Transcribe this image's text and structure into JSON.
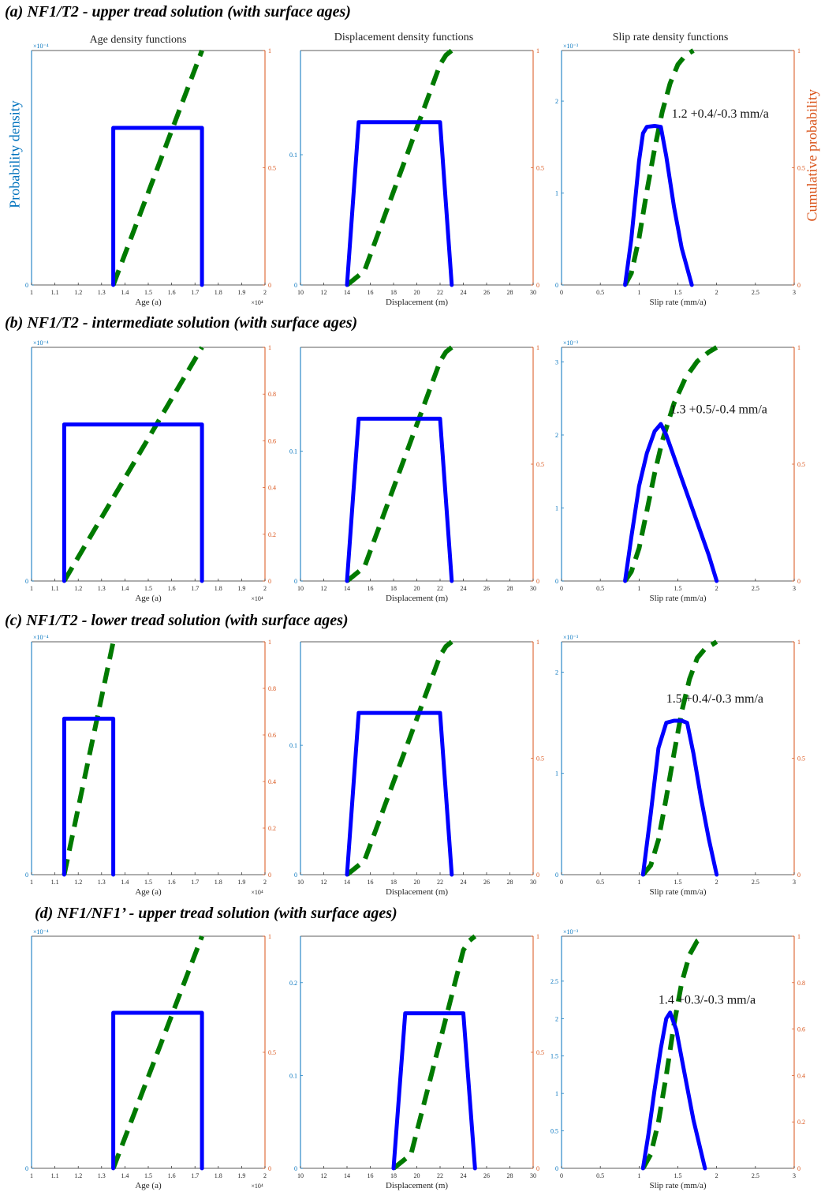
{
  "row_titles": [
    "(a) NF1/T2 - upper tread solution (with surface ages)",
    "(b) NF1/T2 - intermediate solution (with surface ages)",
    "(c) NF1/T2 - lower tread solution (with surface ages)",
    "(d) NF1/NF1’ - upper tread solution (with surface ages)"
  ],
  "column_titles": [
    "Age density functions",
    "Displacement density functions",
    "Slip rate density functions"
  ],
  "left_axis_label": "Probability density",
  "right_axis_label": "Cumulative probability",
  "colors": {
    "pdf": "#0000ff",
    "cdf": "#007a00",
    "left_axis": "#0072bd",
    "right_axis": "#d95319"
  },
  "chart_data": [
    {
      "id": "a-age",
      "type": "line",
      "xlabel": "Age (a)",
      "xlim": [
        1,
        2
      ],
      "xticks": [
        1,
        1.1,
        1.2,
        1.3,
        1.4,
        1.5,
        1.6,
        1.7,
        1.8,
        1.9,
        2
      ],
      "x_exponent": "×10⁴",
      "ylim_left": [
        0,
        1.0
      ],
      "yticks_left": [
        0
      ],
      "y_exponent": "×10⁻⁴",
      "ylim_right": [
        0,
        1
      ],
      "yticks_right": [
        0,
        0.5,
        1
      ],
      "pdf": {
        "x": [
          1.35,
          1.35,
          1.73,
          1.73
        ],
        "y": [
          0,
          0.67,
          0.67,
          0
        ]
      },
      "cdf": {
        "x": [
          1.35,
          1.73
        ],
        "y": [
          0,
          1
        ]
      }
    },
    {
      "id": "a-disp",
      "type": "line",
      "xlabel": "Displacement (m)",
      "xlim": [
        10,
        30
      ],
      "xticks": [
        10,
        12,
        14,
        16,
        18,
        20,
        22,
        24,
        26,
        28,
        30
      ],
      "ylim_left": [
        0,
        0.18
      ],
      "yticks_left": [
        0,
        0.1
      ],
      "ylim_right": [
        0,
        1
      ],
      "yticks_right": [
        0,
        0.5,
        1
      ],
      "pdf": {
        "x": [
          14,
          15,
          22,
          23
        ],
        "y": [
          0,
          0.125,
          0.125,
          0
        ]
      },
      "cdf": {
        "x": [
          14,
          14.5,
          15.5,
          22,
          22.5,
          23
        ],
        "y": [
          0,
          0.02,
          0.06,
          0.94,
          0.98,
          1
        ]
      }
    },
    {
      "id": "a-slip",
      "type": "line",
      "xlabel": "Slip rate (mm/a)",
      "xlim": [
        0,
        3
      ],
      "xticks": [
        0,
        0.5,
        1,
        1.5,
        2,
        2.5,
        3
      ],
      "ylim_left": [
        0,
        2.55
      ],
      "yticks_left": [
        0,
        1,
        2
      ],
      "y_exponent": "×10⁻³",
      "ylim_right": [
        0,
        1
      ],
      "yticks_right": [
        0,
        0.5,
        1
      ],
      "annotation": "1.2 +0.4/-0.3 mm/a",
      "annotation_pos": [
        1.42,
        1.82
      ],
      "pdf": {
        "x": [
          0.82,
          0.9,
          1.0,
          1.05,
          1.1,
          1.2,
          1.28,
          1.35,
          1.45,
          1.55,
          1.68
        ],
        "y": [
          0,
          0.5,
          1.35,
          1.65,
          1.72,
          1.73,
          1.72,
          1.4,
          0.85,
          0.4,
          0
        ]
      },
      "cdf": {
        "x": [
          0.82,
          0.9,
          1.0,
          1.1,
          1.2,
          1.3,
          1.4,
          1.5,
          1.6,
          1.7
        ],
        "y": [
          0,
          0.05,
          0.2,
          0.4,
          0.58,
          0.74,
          0.86,
          0.94,
          0.98,
          1
        ]
      }
    },
    {
      "id": "b-age",
      "type": "line",
      "xlabel": "Age (a)",
      "xlim": [
        1,
        2
      ],
      "xticks": [
        1,
        1.1,
        1.2,
        1.3,
        1.4,
        1.5,
        1.6,
        1.7,
        1.8,
        1.9,
        2
      ],
      "x_exponent": "×10⁴",
      "ylim_left": [
        0,
        1.0
      ],
      "yticks_left": [
        0
      ],
      "y_exponent": "×10⁻⁴",
      "ylim_right": [
        0,
        1
      ],
      "yticks_right": [
        0,
        0.2,
        0.4,
        0.6,
        0.8,
        1
      ],
      "pdf": {
        "x": [
          1.14,
          1.14,
          1.73,
          1.73
        ],
        "y": [
          0,
          0.67,
          0.67,
          0
        ]
      },
      "cdf": {
        "x": [
          1.14,
          1.73
        ],
        "y": [
          0,
          1
        ]
      }
    },
    {
      "id": "b-disp",
      "type": "line",
      "xlabel": "Displacement (m)",
      "xlim": [
        10,
        30
      ],
      "xticks": [
        10,
        12,
        14,
        16,
        18,
        20,
        22,
        24,
        26,
        28,
        30
      ],
      "ylim_left": [
        0,
        0.18
      ],
      "yticks_left": [
        0,
        0.1
      ],
      "ylim_right": [
        0,
        1
      ],
      "yticks_right": [
        0,
        0.5,
        1
      ],
      "pdf": {
        "x": [
          14,
          15,
          22,
          23
        ],
        "y": [
          0,
          0.125,
          0.125,
          0
        ]
      },
      "cdf": {
        "x": [
          14,
          14.5,
          15.5,
          22,
          22.5,
          23
        ],
        "y": [
          0,
          0.02,
          0.06,
          0.94,
          0.98,
          1
        ]
      }
    },
    {
      "id": "b-slip",
      "type": "line",
      "xlabel": "Slip rate (mm/a)",
      "xlim": [
        0,
        3
      ],
      "xticks": [
        0,
        0.5,
        1,
        1.5,
        2,
        2.5,
        3
      ],
      "ylim_left": [
        0,
        3.2
      ],
      "yticks_left": [
        0,
        1,
        2,
        3
      ],
      "y_exponent": "×10⁻³",
      "ylim_right": [
        0,
        1
      ],
      "yticks_right": [
        0,
        0.5,
        1
      ],
      "annotation": "1.3 +0.5/-0.4 mm/a",
      "annotation_pos": [
        1.4,
        2.3
      ],
      "pdf": {
        "x": [
          0.82,
          0.9,
          1.0,
          1.1,
          1.2,
          1.28,
          1.35,
          1.5,
          1.7,
          1.9,
          2.0
        ],
        "y": [
          0,
          0.6,
          1.3,
          1.75,
          2.05,
          2.15,
          2.0,
          1.55,
          0.95,
          0.35,
          0
        ]
      },
      "cdf": {
        "x": [
          0.82,
          0.9,
          1.0,
          1.1,
          1.2,
          1.3,
          1.45,
          1.6,
          1.75,
          1.9,
          2.0
        ],
        "y": [
          0,
          0.04,
          0.14,
          0.3,
          0.46,
          0.6,
          0.76,
          0.87,
          0.94,
          0.98,
          1
        ]
      }
    },
    {
      "id": "c-age",
      "type": "line",
      "xlabel": "Age (a)",
      "xlim": [
        1,
        2
      ],
      "xticks": [
        1,
        1.1,
        1.2,
        1.3,
        1.4,
        1.5,
        1.6,
        1.7,
        1.8,
        1.9,
        2
      ],
      "x_exponent": "×10⁴",
      "ylim_left": [
        0,
        1.0
      ],
      "yticks_left": [
        0
      ],
      "y_exponent": "×10⁻⁴",
      "ylim_right": [
        0,
        1
      ],
      "yticks_right": [
        0,
        0.2,
        0.4,
        0.6,
        0.8,
        1
      ],
      "pdf": {
        "x": [
          1.14,
          1.14,
          1.35,
          1.35
        ],
        "y": [
          0,
          0.67,
          0.67,
          0
        ]
      },
      "cdf": {
        "x": [
          1.14,
          1.35
        ],
        "y": [
          0,
          1
        ]
      }
    },
    {
      "id": "c-disp",
      "type": "line",
      "xlabel": "Displacement (m)",
      "xlim": [
        10,
        30
      ],
      "xticks": [
        10,
        12,
        14,
        16,
        18,
        20,
        22,
        24,
        26,
        28,
        30
      ],
      "ylim_left": [
        0,
        0.18
      ],
      "yticks_left": [
        0,
        0.1
      ],
      "ylim_right": [
        0,
        1
      ],
      "yticks_right": [
        0,
        0.5,
        1
      ],
      "pdf": {
        "x": [
          14,
          15,
          22,
          23
        ],
        "y": [
          0,
          0.125,
          0.125,
          0
        ]
      },
      "cdf": {
        "x": [
          14,
          14.5,
          15.5,
          22,
          22.5,
          23
        ],
        "y": [
          0,
          0.02,
          0.06,
          0.94,
          0.98,
          1
        ]
      }
    },
    {
      "id": "c-slip",
      "type": "line",
      "xlabel": "Slip rate (mm/a)",
      "xlim": [
        0,
        3
      ],
      "xticks": [
        0,
        0.5,
        1,
        1.5,
        2,
        2.5,
        3
      ],
      "ylim_left": [
        0,
        2.3
      ],
      "yticks_left": [
        0,
        1,
        2
      ],
      "y_exponent": "×10⁻³",
      "ylim_right": [
        0,
        1
      ],
      "yticks_right": [
        0,
        0.5,
        1
      ],
      "annotation": "1.5 +0.4/-0.3 mm/a",
      "annotation_pos": [
        1.35,
        1.7
      ],
      "pdf": {
        "x": [
          1.05,
          1.15,
          1.25,
          1.35,
          1.45,
          1.55,
          1.62,
          1.7,
          1.8,
          1.9,
          2.0
        ],
        "y": [
          0,
          0.6,
          1.25,
          1.5,
          1.52,
          1.52,
          1.5,
          1.2,
          0.75,
          0.35,
          0
        ]
      },
      "cdf": {
        "x": [
          1.05,
          1.15,
          1.25,
          1.35,
          1.45,
          1.55,
          1.65,
          1.75,
          1.85,
          1.95,
          2.0
        ],
        "y": [
          0,
          0.04,
          0.15,
          0.33,
          0.52,
          0.7,
          0.84,
          0.93,
          0.97,
          0.99,
          1
        ]
      }
    },
    {
      "id": "d-age",
      "type": "line",
      "xlabel": "Age (a)",
      "xlim": [
        1,
        2
      ],
      "xticks": [
        1,
        1.1,
        1.2,
        1.3,
        1.4,
        1.5,
        1.6,
        1.7,
        1.8,
        1.9,
        2
      ],
      "x_exponent": "×10⁴",
      "ylim_left": [
        0,
        1.0
      ],
      "yticks_left": [
        0
      ],
      "y_exponent": "×10⁻⁴",
      "ylim_right": [
        0,
        1
      ],
      "yticks_right": [
        0,
        0.5,
        1
      ],
      "pdf": {
        "x": [
          1.35,
          1.35,
          1.73,
          1.73
        ],
        "y": [
          0,
          0.67,
          0.67,
          0
        ]
      },
      "cdf": {
        "x": [
          1.35,
          1.73
        ],
        "y": [
          0,
          1
        ]
      }
    },
    {
      "id": "d-disp",
      "type": "line",
      "xlabel": "Displacement (m)",
      "xlim": [
        10,
        30
      ],
      "xticks": [
        10,
        12,
        14,
        16,
        18,
        20,
        22,
        24,
        26,
        28,
        30
      ],
      "ylim_left": [
        0,
        0.25
      ],
      "yticks_left": [
        0,
        0.1,
        0.2
      ],
      "ylim_right": [
        0,
        1
      ],
      "yticks_right": [
        0,
        0.5,
        1
      ],
      "pdf": {
        "x": [
          18,
          19,
          24,
          25
        ],
        "y": [
          0,
          0.167,
          0.167,
          0
        ]
      },
      "cdf": {
        "x": [
          18,
          18.5,
          19.5,
          24,
          24.5,
          25
        ],
        "y": [
          0,
          0.02,
          0.06,
          0.94,
          0.98,
          1
        ]
      }
    },
    {
      "id": "d-slip",
      "type": "line",
      "xlabel": "Slip rate (mm/a)",
      "xlim": [
        0,
        3
      ],
      "xticks": [
        0,
        0.5,
        1,
        1.5,
        2,
        2.5,
        3
      ],
      "ylim_left": [
        0,
        3.1
      ],
      "yticks_left": [
        0,
        0.5,
        1,
        1.5,
        2,
        2.5
      ],
      "y_exponent": "×10⁻³",
      "ylim_right": [
        0,
        1
      ],
      "yticks_right": [
        0,
        0.2,
        0.4,
        0.6,
        0.8,
        1
      ],
      "annotation": "1.4 +0.3/-0.3 mm/a",
      "annotation_pos": [
        1.25,
        2.2
      ],
      "pdf": {
        "x": [
          1.05,
          1.12,
          1.2,
          1.28,
          1.35,
          1.4,
          1.48,
          1.58,
          1.7,
          1.85
        ],
        "y": [
          0,
          0.45,
          1.05,
          1.6,
          2.0,
          2.08,
          1.85,
          1.3,
          0.65,
          0
        ]
      },
      "cdf": {
        "x": [
          1.05,
          1.15,
          1.25,
          1.35,
          1.45,
          1.55,
          1.65,
          1.75,
          1.85
        ],
        "y": [
          0,
          0.06,
          0.2,
          0.4,
          0.62,
          0.8,
          0.92,
          0.98,
          1
        ]
      }
    }
  ]
}
